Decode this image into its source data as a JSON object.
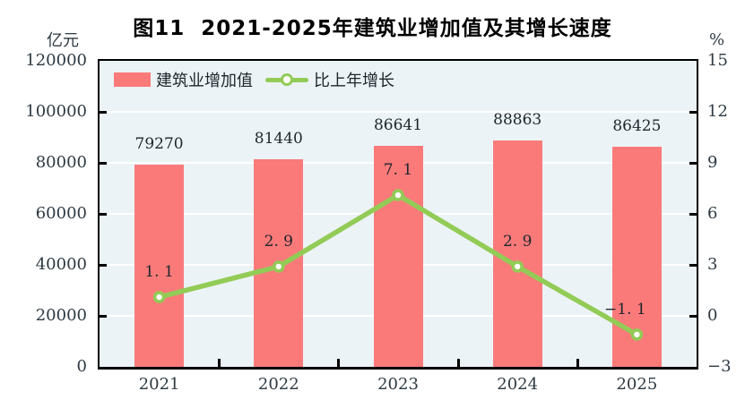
{
  "title": "图11  2021-2025年建筑业增加值及其增长速度",
  "left_axis_unit": "亿元",
  "right_axis_unit": "%",
  "legend": {
    "bar_label": "建筑业增加值",
    "line_label": "比上年增长"
  },
  "colors": {
    "bar": "#fa7a7a",
    "line": "#92cb56",
    "marker_fill": "#ffffff",
    "plot_background": "#ecf3f6",
    "gridline": "#ffffff",
    "axis": "#000000",
    "text": "#2e3a43"
  },
  "chart_data": {
    "type": "bar+line",
    "title": "图11 2021-2025年建筑业增加值及其增长速度",
    "categories": [
      "2021",
      "2022",
      "2023",
      "2024",
      "2025"
    ],
    "series": [
      {
        "name": "建筑业增加值",
        "type": "bar",
        "axis": "left",
        "unit": "亿元",
        "values": [
          79270,
          81440,
          86641,
          88863,
          86425
        ],
        "value_labels": [
          "79270",
          "81440",
          "86641",
          "88863",
          "86425"
        ]
      },
      {
        "name": "比上年增长",
        "type": "line",
        "axis": "right",
        "unit": "%",
        "values": [
          1.1,
          2.9,
          7.1,
          2.9,
          -1.1
        ],
        "value_labels": [
          "1. 1",
          "2. 9",
          "7. 1",
          "2. 9",
          "−1. 1"
        ],
        "label_offsets_x": [
          0,
          0,
          0,
          0,
          -13
        ]
      }
    ],
    "left_axis": {
      "label": "亿元",
      "min": 0,
      "max": 120000,
      "step": 20000,
      "tick_labels": [
        "0",
        "20000",
        "40000",
        "60000",
        "80000",
        "100000",
        "120000"
      ]
    },
    "right_axis": {
      "label": "%",
      "min": -3,
      "max": 15,
      "step": 3,
      "tick_labels": [
        "−3",
        "0",
        "3",
        "6",
        "9",
        "12",
        "15"
      ]
    },
    "grid": true,
    "legend_position": "inside-top-left"
  }
}
